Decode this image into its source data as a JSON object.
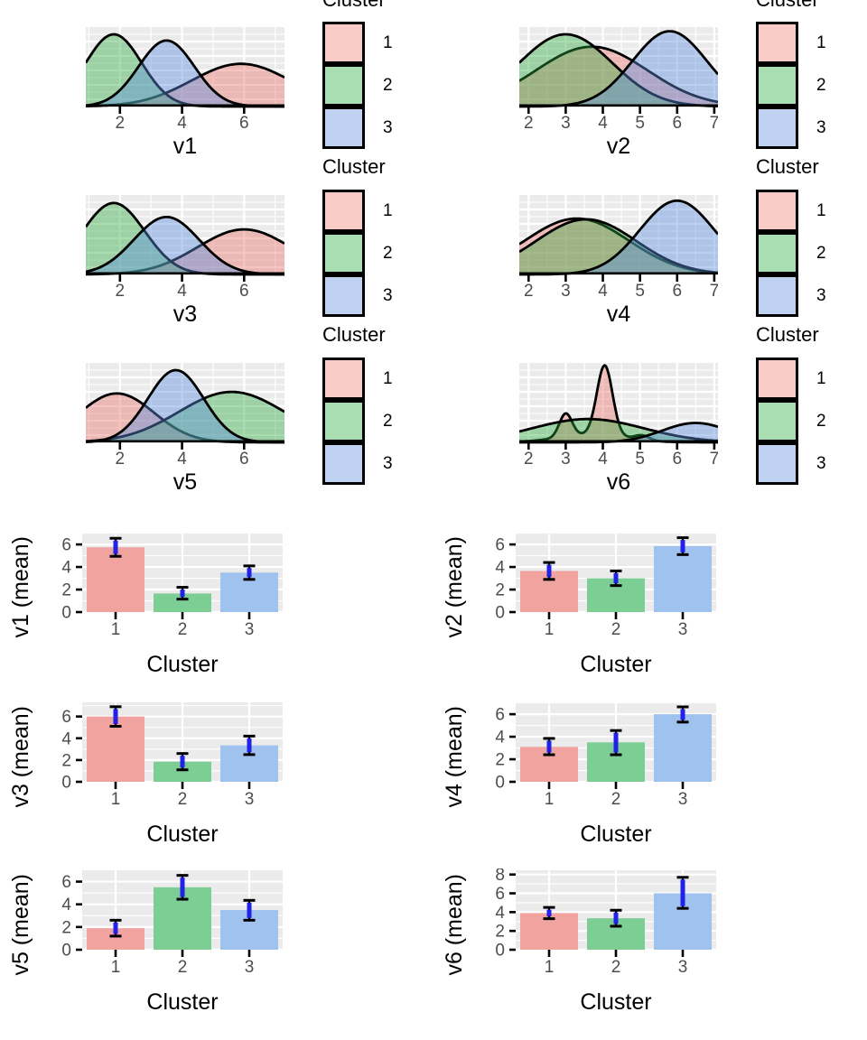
{
  "legend": {
    "title": "Cluster",
    "entries": [
      {
        "label": "1",
        "color": "#F8CBC7"
      },
      {
        "label": "2",
        "color": "#A9DEB2"
      },
      {
        "label": "3",
        "color": "#BFD2F2"
      }
    ]
  },
  "colors": {
    "panel_bg": "#EBEBEB",
    "grid": "#FFFFFF",
    "tick_label": "#4D4D4D",
    "axis_title": "#000000",
    "curve_stroke": "#000000",
    "density_fill": {
      "1": "rgba(235,110,100,0.40)",
      "2": "rgba(40,170,60,0.40)",
      "3": "rgba(90,140,222,0.42)"
    },
    "bar_fill": {
      "1": "#F1A3A0",
      "2": "#7DCE94",
      "3": "#A0C2EE"
    },
    "error_outer": "#000000",
    "error_inner": "#2121E8"
  },
  "chart_data": [
    {
      "type": "density",
      "variable": "v1",
      "xlabel": "v1",
      "legend_title": "Cluster",
      "x_domain": [
        0.9,
        7.3
      ],
      "x_ticks": [
        2,
        4,
        6
      ],
      "series": [
        {
          "name": "1",
          "components": [
            {
              "mu": 5.9,
              "sigma": 1.6,
              "amp": 0.55
            }
          ]
        },
        {
          "name": "2",
          "components": [
            {
              "mu": 1.8,
              "sigma": 0.9,
              "amp": 0.93
            }
          ]
        },
        {
          "name": "3",
          "components": [
            {
              "mu": 3.5,
              "sigma": 0.9,
              "amp": 0.85
            }
          ]
        }
      ]
    },
    {
      "type": "density",
      "variable": "v2",
      "xlabel": "v2",
      "legend_title": "Cluster",
      "x_domain": [
        1.75,
        7.1
      ],
      "x_ticks": [
        2,
        3,
        4,
        5,
        6,
        7
      ],
      "series": [
        {
          "name": "1",
          "components": [
            {
              "mu": 3.7,
              "sigma": 1.5,
              "amp": 0.77
            }
          ]
        },
        {
          "name": "2",
          "components": [
            {
              "mu": 3.0,
              "sigma": 1.25,
              "amp": 0.93
            }
          ]
        },
        {
          "name": "3",
          "components": [
            {
              "mu": 5.8,
              "sigma": 1.0,
              "amp": 0.97
            }
          ]
        }
      ]
    },
    {
      "type": "density",
      "variable": "v3",
      "xlabel": "v3",
      "legend_title": "Cluster",
      "x_domain": [
        0.9,
        7.3
      ],
      "x_ticks": [
        2,
        4,
        6
      ],
      "series": [
        {
          "name": "1",
          "components": [
            {
              "mu": 6.0,
              "sigma": 1.5,
              "amp": 0.58
            }
          ]
        },
        {
          "name": "2",
          "components": [
            {
              "mu": 1.8,
              "sigma": 1.0,
              "amp": 0.92
            }
          ]
        },
        {
          "name": "3",
          "components": [
            {
              "mu": 3.5,
              "sigma": 1.05,
              "amp": 0.74
            }
          ]
        }
      ]
    },
    {
      "type": "density",
      "variable": "v4",
      "xlabel": "v4",
      "legend_title": "Cluster",
      "x_domain": [
        1.75,
        7.1
      ],
      "x_ticks": [
        2,
        3,
        4,
        5,
        6,
        7
      ],
      "series": [
        {
          "name": "1",
          "components": [
            {
              "mu": 3.3,
              "sigma": 1.4,
              "amp": 0.72
            }
          ]
        },
        {
          "name": "2",
          "components": [
            {
              "mu": 3.55,
              "sigma": 1.35,
              "amp": 0.71
            }
          ]
        },
        {
          "name": "3",
          "components": [
            {
              "mu": 6.0,
              "sigma": 1.0,
              "amp": 0.95
            }
          ]
        }
      ]
    },
    {
      "type": "density",
      "variable": "v5",
      "xlabel": "v5",
      "legend_title": "Cluster",
      "x_domain": [
        0.9,
        7.3
      ],
      "x_ticks": [
        2,
        4,
        6
      ],
      "series": [
        {
          "name": "1",
          "components": [
            {
              "mu": 1.9,
              "sigma": 1.2,
              "amp": 0.63
            }
          ]
        },
        {
          "name": "2",
          "components": [
            {
              "mu": 5.6,
              "sigma": 1.7,
              "amp": 0.65
            }
          ]
        },
        {
          "name": "3",
          "components": [
            {
              "mu": 3.8,
              "sigma": 0.9,
              "amp": 0.93
            }
          ]
        }
      ]
    },
    {
      "type": "density",
      "variable": "v6",
      "xlabel": "v6",
      "legend_title": "Cluster",
      "x_domain": [
        1.75,
        7.1
      ],
      "x_ticks": [
        2,
        3,
        4,
        5,
        6,
        7
      ],
      "series": [
        {
          "name": "1",
          "components": [
            {
              "mu": 3.0,
              "sigma": 0.17,
              "amp": 0.3
            },
            {
              "mu": 4.05,
              "sigma": 0.21,
              "amp": 0.9
            },
            {
              "mu": 3.7,
              "sigma": 0.9,
              "amp": 0.1
            },
            {
              "mu": 5.05,
              "sigma": 0.2,
              "amp": 0.06
            }
          ]
        },
        {
          "name": "2",
          "components": [
            {
              "mu": 3.6,
              "sigma": 1.5,
              "amp": 0.3
            }
          ]
        },
        {
          "name": "3",
          "components": [
            {
              "mu": 6.5,
              "sigma": 0.9,
              "amp": 0.25
            }
          ]
        }
      ]
    },
    {
      "type": "bar",
      "variable": "v1",
      "xlabel": "Cluster",
      "ylabel": "v1 (mean)",
      "categories": [
        "1",
        "2",
        "3"
      ],
      "values": [
        5.75,
        1.65,
        3.5
      ],
      "error_low": [
        4.95,
        1.15,
        2.9
      ],
      "error_high": [
        6.55,
        2.2,
        4.1
      ],
      "y_ticks": [
        0,
        2,
        4,
        6
      ],
      "y_max": 7.05
    },
    {
      "type": "bar",
      "variable": "v2",
      "xlabel": "Cluster",
      "ylabel": "v2 (mean)",
      "categories": [
        "1",
        "2",
        "3"
      ],
      "values": [
        3.65,
        3.0,
        5.85
      ],
      "error_low": [
        2.9,
        2.35,
        5.1
      ],
      "error_high": [
        4.4,
        3.65,
        6.6
      ],
      "y_ticks": [
        0,
        2,
        4,
        6
      ],
      "y_max": 7.05
    },
    {
      "type": "bar",
      "variable": "v3",
      "xlabel": "Cluster",
      "ylabel": "v3 (mean)",
      "categories": [
        "1",
        "2",
        "3"
      ],
      "values": [
        6.0,
        1.85,
        3.35
      ],
      "error_low": [
        5.1,
        1.1,
        2.5
      ],
      "error_high": [
        6.9,
        2.6,
        4.2
      ],
      "y_ticks": [
        0,
        2,
        4,
        6
      ],
      "y_max": 7.3
    },
    {
      "type": "bar",
      "variable": "v4",
      "xlabel": "Cluster",
      "ylabel": "v4 (mean)",
      "categories": [
        "1",
        "2",
        "3"
      ],
      "values": [
        3.1,
        3.5,
        6.0
      ],
      "error_low": [
        2.4,
        2.4,
        5.3
      ],
      "error_high": [
        3.85,
        4.55,
        6.65
      ],
      "y_ticks": [
        0,
        2,
        4,
        6
      ],
      "y_max": 7.05
    },
    {
      "type": "bar",
      "variable": "v5",
      "xlabel": "Cluster",
      "ylabel": "v5 (mean)",
      "categories": [
        "1",
        "2",
        "3"
      ],
      "values": [
        1.9,
        5.5,
        3.5
      ],
      "error_low": [
        1.2,
        4.45,
        2.6
      ],
      "error_high": [
        2.6,
        6.55,
        4.35
      ],
      "y_ticks": [
        0,
        2,
        4,
        6
      ],
      "y_max": 7.0
    },
    {
      "type": "bar",
      "variable": "v6",
      "xlabel": "Cluster",
      "ylabel": "v6 (mean)",
      "categories": [
        "1",
        "2",
        "3"
      ],
      "values": [
        3.9,
        3.35,
        6.0
      ],
      "error_low": [
        3.3,
        2.5,
        4.4
      ],
      "error_high": [
        4.5,
        4.2,
        7.7
      ],
      "y_ticks": [
        0,
        2,
        4,
        6,
        8
      ],
      "y_max": 8.45
    }
  ]
}
